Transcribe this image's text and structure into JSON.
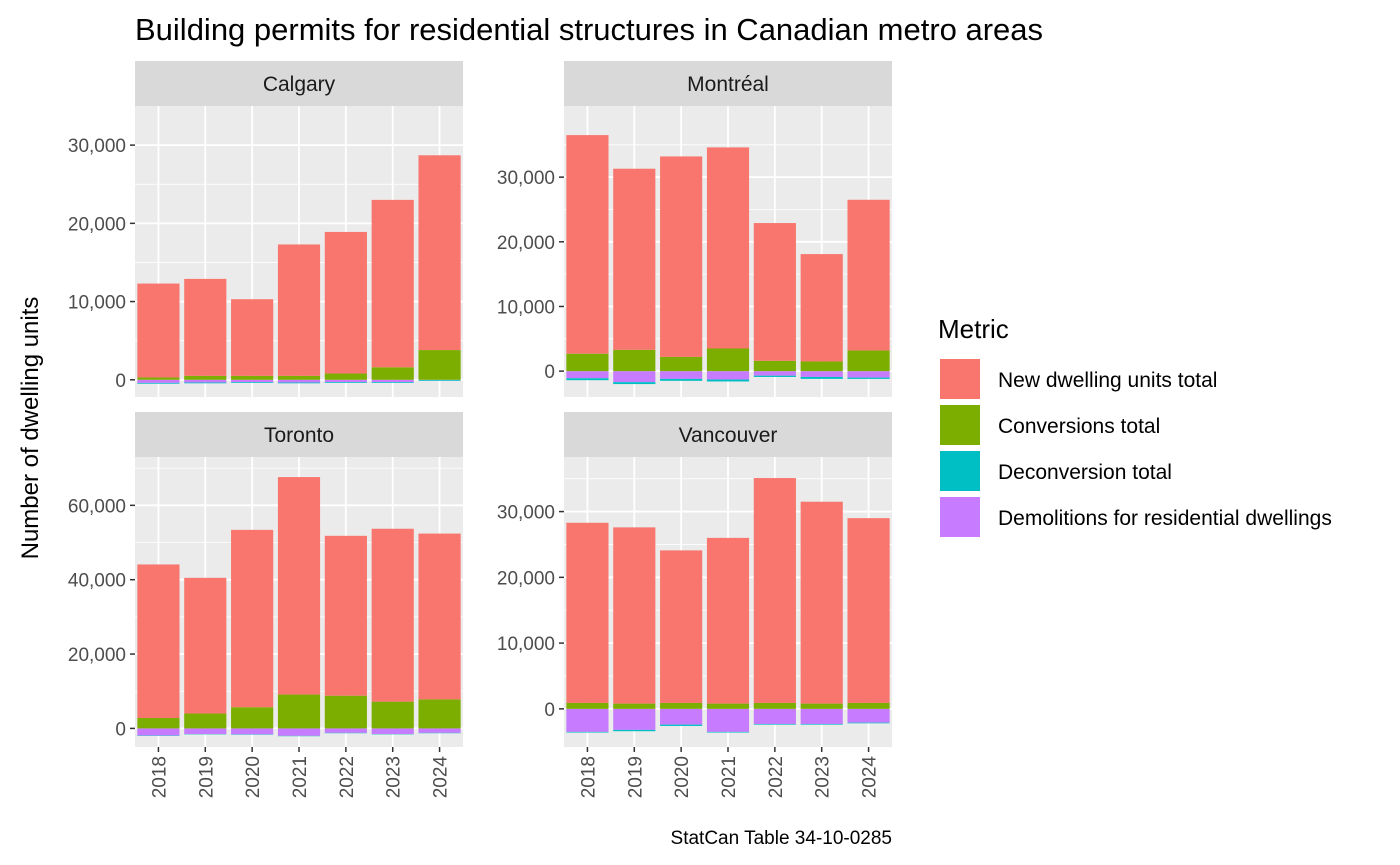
{
  "chart_data": {
    "type": "bar",
    "stacked": true,
    "title": "Building permits for residential structures in Canadian metro areas",
    "ylabel": "Number of dwelling units",
    "xlabel": "",
    "caption": "StatCan Table 34-10-0285",
    "legend": {
      "title": "Metric",
      "position": "right",
      "entries": [
        "New dwelling units total",
        "Conversions total",
        "Deconversion total",
        "Demolitions for residential dwellings"
      ]
    },
    "colors": {
      "New dwelling units total": "#F8766D",
      "Conversions total": "#7CAE00",
      "Deconversion total": "#00BFC4",
      "Demolitions for residential dwellings": "#C77CFF",
      "panel_bg": "#EBEBEB",
      "strip_bg": "#D9D9D9",
      "grid": "#FFFFFF"
    },
    "grid": true,
    "categories": [
      "2018",
      "2019",
      "2020",
      "2021",
      "2022",
      "2023",
      "2024"
    ],
    "panels": [
      {
        "name": "Calgary",
        "ylim": [
          -2200,
          35000
        ],
        "yticks": [
          0,
          10000,
          20000,
          30000
        ],
        "ytick_labels": [
          "0",
          "10,000",
          "20,000",
          "30,000"
        ],
        "series": [
          {
            "name": "New dwelling units total",
            "values": [
              12000,
              12400,
              9800,
              16800,
              18100,
              21400,
              24900
            ]
          },
          {
            "name": "Conversions total",
            "values": [
              300,
              500,
              500,
              500,
              800,
              1600,
              3800
            ]
          },
          {
            "name": "Deconversion total",
            "values": [
              -100,
              -100,
              -100,
              -100,
              -100,
              -100,
              -100
            ]
          },
          {
            "name": "Demolitions for residential dwellings",
            "values": [
              -400,
              -350,
              -300,
              -350,
              -300,
              -300,
              -50
            ]
          }
        ]
      },
      {
        "name": "Montréal",
        "ylim": [
          -4000,
          41000
        ],
        "yticks": [
          0,
          10000,
          20000,
          30000
        ],
        "ytick_labels": [
          "0",
          "10,000",
          "20,000",
          "30,000"
        ],
        "series": [
          {
            "name": "New dwelling units total",
            "values": [
              33800,
              28000,
              31000,
              31100,
              21300,
              16600,
              23300
            ]
          },
          {
            "name": "Conversions total",
            "values": [
              2700,
              3300,
              2200,
              3500,
              1600,
              1500,
              3200
            ]
          },
          {
            "name": "Deconversion total",
            "values": [
              -300,
              -300,
              -300,
              -300,
              -200,
              -300,
              -200
            ]
          },
          {
            "name": "Demolitions for residential dwellings",
            "values": [
              -1100,
              -1700,
              -1200,
              -1300,
              -700,
              -900,
              -1000
            ]
          }
        ]
      },
      {
        "name": "Toronto",
        "ylim": [
          -5000,
          73000
        ],
        "yticks": [
          0,
          20000,
          40000,
          60000
        ],
        "ytick_labels": [
          "0",
          "20,000",
          "40,000",
          "60,000"
        ],
        "series": [
          {
            "name": "New dwelling units total",
            "values": [
              41300,
              36500,
              47700,
              58500,
              43000,
              46500,
              44600
            ]
          },
          {
            "name": "Conversions total",
            "values": [
              2800,
              4000,
              5700,
              9100,
              8800,
              7200,
              7800
            ]
          },
          {
            "name": "Deconversion total",
            "values": [
              -100,
              -100,
              -100,
              -100,
              -100,
              -100,
              -100
            ]
          },
          {
            "name": "Demolitions for residential dwellings",
            "values": [
              -1900,
              -1500,
              -1600,
              -2000,
              -1200,
              -1500,
              -1200
            ]
          }
        ]
      },
      {
        "name": "Vancouver",
        "ylim": [
          -5800,
          38300
        ],
        "yticks": [
          0,
          10000,
          20000,
          30000
        ],
        "ytick_labels": [
          "0",
          "10,000",
          "20,000",
          "30,000"
        ],
        "series": [
          {
            "name": "New dwelling units total",
            "values": [
              27400,
              26800,
              23200,
              25200,
              34200,
              30700,
              28100
            ]
          },
          {
            "name": "Conversions total",
            "values": [
              900,
              800,
              900,
              800,
              900,
              800,
              900
            ]
          },
          {
            "name": "Deconversion total",
            "values": [
              -100,
              -200,
              -200,
              -100,
              -100,
              -100,
              -100
            ]
          },
          {
            "name": "Demolitions for residential dwellings",
            "values": [
              -3500,
              -3200,
              -2400,
              -3500,
              -2300,
              -2300,
              -2100
            ]
          }
        ]
      }
    ]
  }
}
